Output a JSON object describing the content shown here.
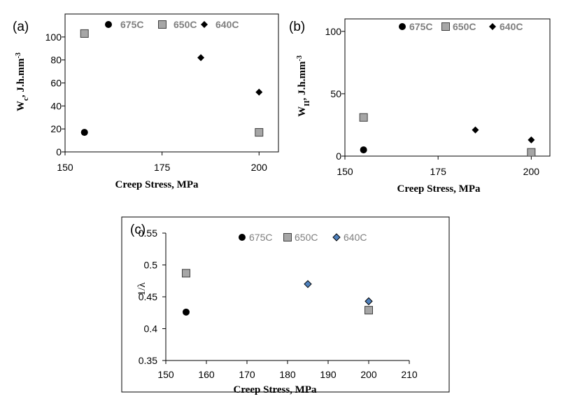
{
  "colors": {
    "c675": "#000000",
    "c650": "#a6a6a6",
    "c640a": "#000000",
    "c640c": "#4f81bd",
    "stroke": "#404040"
  },
  "chart_data": [
    {
      "id": "a",
      "type": "scatter",
      "panel_label": "(a)",
      "xlabel": "Creep Stress, MPa",
      "ylabel": {
        "main": "W",
        "sub": "c",
        "rest": ", J.h.mm",
        "sup": "-3"
      },
      "xlim": [
        150,
        205
      ],
      "ylim": [
        0,
        120
      ],
      "xticks": [
        150,
        175,
        200
      ],
      "yticks": [
        0,
        20,
        40,
        60,
        80,
        100
      ],
      "legend": [
        "675C",
        "650C",
        "640C"
      ],
      "series": [
        {
          "name": "675C",
          "marker": "circle",
          "points": [
            [
              155,
              17
            ]
          ]
        },
        {
          "name": "650C",
          "marker": "square",
          "points": [
            [
              155,
              103
            ],
            [
              200,
              17
            ]
          ]
        },
        {
          "name": "640C",
          "marker": "diamond",
          "points": [
            [
              185,
              82
            ],
            [
              200,
              52
            ]
          ]
        }
      ]
    },
    {
      "id": "b",
      "type": "scatter",
      "panel_label": "(b)",
      "xlabel": "Creep Stress, MPa",
      "ylabel": {
        "main": "W",
        "sub": "II",
        "rest": ", J.h.mm",
        "sup": "-3"
      },
      "xlim": [
        150,
        205
      ],
      "ylim": [
        0,
        110
      ],
      "xticks": [
        150,
        175,
        200
      ],
      "yticks": [
        0,
        50,
        100
      ],
      "legend": [
        "675C",
        "650C",
        "640C"
      ],
      "series": [
        {
          "name": "675C",
          "marker": "circle",
          "points": [
            [
              155,
              5
            ]
          ]
        },
        {
          "name": "650C",
          "marker": "square",
          "points": [
            [
              155,
              31
            ],
            [
              200,
              3
            ]
          ]
        },
        {
          "name": "640C",
          "marker": "diamond",
          "points": [
            [
              185,
              21
            ],
            [
              200,
              13
            ]
          ]
        }
      ]
    },
    {
      "id": "c",
      "type": "scatter",
      "panel_label": "(c)",
      "xlabel": "Creep Stress, MPa",
      "ylabel": {
        "main": "1/λ"
      },
      "xlim": [
        150,
        210
      ],
      "ylim": [
        0.35,
        0.55
      ],
      "xticks": [
        150,
        160,
        170,
        180,
        190,
        200,
        210
      ],
      "yticks": [
        0.35,
        0.4,
        0.45,
        0.5,
        0.55
      ],
      "legend": [
        "675C",
        "650C",
        "640C"
      ],
      "series": [
        {
          "name": "675C",
          "marker": "circle",
          "points": [
            [
              155,
              0.426
            ]
          ]
        },
        {
          "name": "650C",
          "marker": "square",
          "points": [
            [
              155,
              0.487
            ],
            [
              200,
              0.429
            ]
          ]
        },
        {
          "name": "640C",
          "marker": "diamond",
          "points": [
            [
              185,
              0.47
            ],
            [
              200,
              0.443
            ]
          ]
        }
      ]
    }
  ]
}
